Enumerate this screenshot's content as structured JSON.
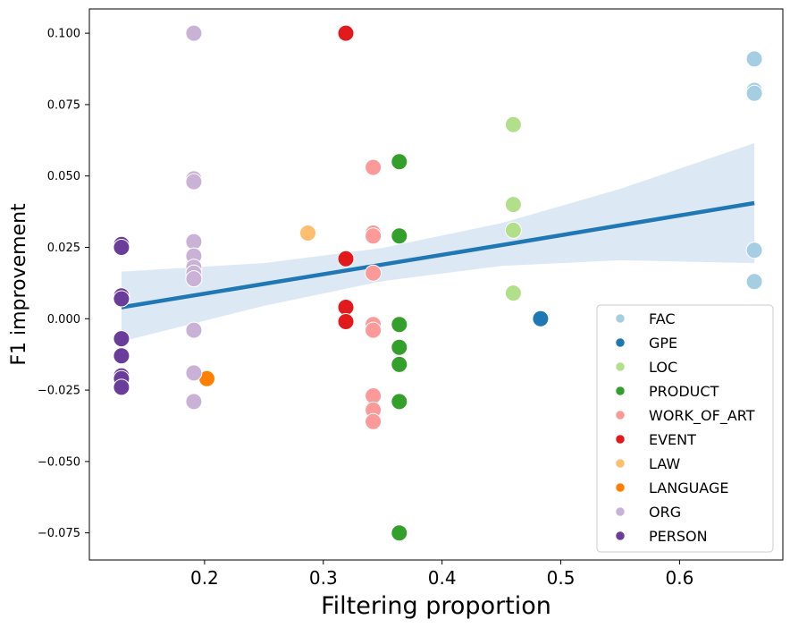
{
  "chart_data": {
    "type": "scatter",
    "xlabel": "Filtering proportion",
    "ylabel": "F1 improvement",
    "xlim": [
      0.103,
      0.687
    ],
    "ylim": [
      -0.0845,
      0.1085
    ],
    "x_ticks": [
      0.2,
      0.3,
      0.4,
      0.5,
      0.6
    ],
    "x_tick_labels": [
      "0.2",
      "0.3",
      "0.4",
      "0.5",
      "0.6"
    ],
    "y_ticks": [
      0.1,
      0.075,
      0.05,
      0.025,
      0.0,
      -0.025,
      -0.05,
      -0.075
    ],
    "y_tick_labels": [
      "0.100",
      "0.075",
      "0.050",
      "0.025",
      "0.000",
      "−0.025",
      "−0.050",
      "−0.075"
    ],
    "legend_position": "lower-right",
    "series": [
      {
        "name": "FAC",
        "color": "#a6cee3",
        "points": [
          [
            0.663,
            0.091
          ],
          [
            0.663,
            0.08
          ],
          [
            0.663,
            0.079
          ],
          [
            0.663,
            0.024
          ],
          [
            0.663,
            0.013
          ]
        ]
      },
      {
        "name": "GPE",
        "color": "#1f78b4",
        "points": [
          [
            0.483,
            0.0
          ]
        ]
      },
      {
        "name": "LOC",
        "color": "#b2df8a",
        "points": [
          [
            0.46,
            0.068
          ],
          [
            0.46,
            0.04
          ],
          [
            0.46,
            0.031
          ],
          [
            0.46,
            0.009
          ]
        ]
      },
      {
        "name": "PRODUCT",
        "color": "#33a02c",
        "points": [
          [
            0.364,
            0.055
          ],
          [
            0.364,
            0.029
          ],
          [
            0.364,
            -0.002
          ],
          [
            0.364,
            -0.01
          ],
          [
            0.364,
            -0.016
          ],
          [
            0.364,
            -0.029
          ],
          [
            0.364,
            -0.075
          ]
        ]
      },
      {
        "name": "WORK_OF_ART",
        "color": "#fb9a99",
        "points": [
          [
            0.342,
            0.053
          ],
          [
            0.342,
            0.03
          ],
          [
            0.342,
            0.029
          ],
          [
            0.342,
            0.016
          ],
          [
            0.342,
            -0.002
          ],
          [
            0.342,
            -0.004
          ],
          [
            0.342,
            -0.027
          ],
          [
            0.342,
            -0.032
          ],
          [
            0.342,
            -0.036
          ]
        ]
      },
      {
        "name": "EVENT",
        "color": "#e31a1c",
        "points": [
          [
            0.319,
            0.1
          ],
          [
            0.319,
            0.021
          ],
          [
            0.319,
            0.004
          ],
          [
            0.319,
            -0.001
          ]
        ]
      },
      {
        "name": "LAW",
        "color": "#fdbf6f",
        "points": [
          [
            0.287,
            0.03
          ]
        ]
      },
      {
        "name": "LANGUAGE",
        "color": "#ff7f00",
        "points": [
          [
            0.202,
            -0.021
          ]
        ]
      },
      {
        "name": "ORG",
        "color": "#cab2d6",
        "points": [
          [
            0.191,
            0.1
          ],
          [
            0.191,
            0.049
          ],
          [
            0.191,
            0.048
          ],
          [
            0.191,
            0.027
          ],
          [
            0.191,
            0.022
          ],
          [
            0.191,
            0.018
          ],
          [
            0.191,
            0.016
          ],
          [
            0.191,
            0.014
          ],
          [
            0.191,
            -0.004
          ],
          [
            0.191,
            -0.019
          ],
          [
            0.191,
            -0.029
          ]
        ]
      },
      {
        "name": "PERSON",
        "color": "#6a3d9a",
        "points": [
          [
            0.13,
            0.026
          ],
          [
            0.13,
            0.025
          ],
          [
            0.13,
            0.008
          ],
          [
            0.13,
            0.007
          ],
          [
            0.13,
            -0.007
          ],
          [
            0.13,
            -0.013
          ],
          [
            0.13,
            -0.02
          ],
          [
            0.13,
            -0.021
          ],
          [
            0.13,
            -0.024
          ]
        ]
      }
    ],
    "regression": {
      "color": "#1f77b4",
      "band_color": "#c6dbef",
      "x": [
        0.13,
        0.25,
        0.35,
        0.45,
        0.55,
        0.663
      ],
      "y": [
        0.004,
        0.0122,
        0.019,
        0.0258,
        0.0327,
        0.0405
      ],
      "lower": [
        -0.008,
        0.0045,
        0.0132,
        0.0185,
        0.0205,
        0.0195
      ],
      "upper": [
        0.0165,
        0.0195,
        0.0248,
        0.0335,
        0.0455,
        0.0615
      ]
    }
  }
}
